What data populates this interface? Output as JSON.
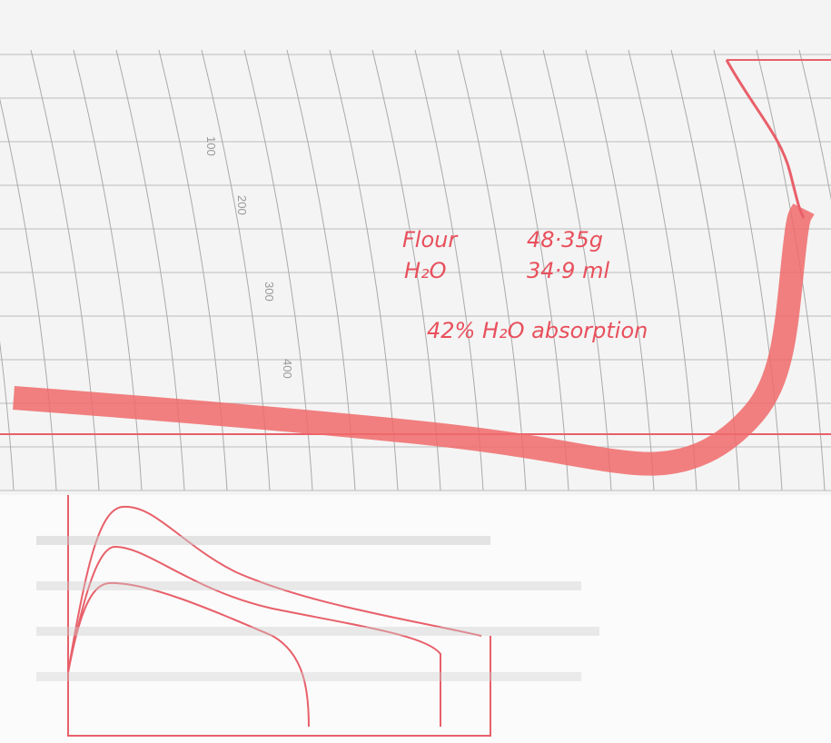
{
  "paper": {
    "scale_labels": [
      "100",
      "200",
      "300",
      "400"
    ]
  },
  "notes": {
    "flour_label": "Flour",
    "flour_value": "48·35g",
    "water_label": "H₂O",
    "water_value": "34·9 ml",
    "absorption": "42% H₂O absorption"
  }
}
